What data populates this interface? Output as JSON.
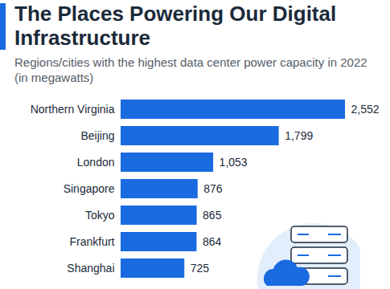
{
  "chart_data": {
    "type": "bar",
    "title": "The Places Powering Our Digital Infrastructure",
    "subtitle": "Regions/cities with the highest data center power capacity in 2022 (in megawatts)",
    "orientation": "horizontal",
    "categories": [
      "Northern Virginia",
      "Beijing",
      "London",
      "Singapore",
      "Tokyo",
      "Frankfurt",
      "Shanghai"
    ],
    "values": [
      2552,
      1799,
      1053,
      876,
      865,
      864,
      725
    ],
    "value_labels": [
      "2,552",
      "1,799",
      "1,053",
      "876",
      "865",
      "864",
      "725"
    ],
    "color": "#1a6ae0",
    "data_labels": true,
    "tick_labels": "y",
    "grid": false
  }
}
